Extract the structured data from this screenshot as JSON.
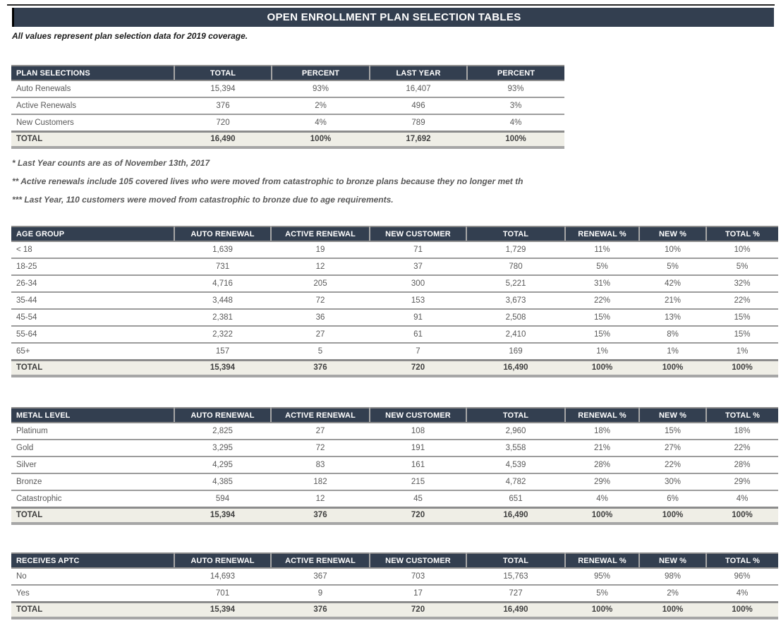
{
  "page": {
    "title": "OPEN ENROLLMENT PLAN SELECTION TABLES",
    "subtitle": "All values represent plan selection data for 2019 coverage."
  },
  "colors": {
    "header_bg": "#333F50",
    "total_row_bg": "#EFEEE6",
    "rule_gray": "#9c9c9c",
    "thick_rule": "#8c8c8c",
    "bottom_rule": "#a6a6a6",
    "data_text": "#595959",
    "total_text": "#3f3f3f"
  },
  "footnotes": [
    "* Last Year counts are as of November 13th, 2017",
    "** Active renewals include 105 covered lives who were moved from catastrophic to bronze plans because they no longer met th",
    "*** Last Year, 110 customers were moved from catastrophic to bronze due to age requirements."
  ],
  "tables": [
    {
      "name": "plan-selections",
      "columns": [
        "PLAN SELECTIONS",
        "TOTAL",
        "PERCENT",
        "LAST YEAR",
        "PERCENT"
      ],
      "rows": [
        [
          "Auto Renewals",
          "15,394",
          "93%",
          "16,407",
          "93%"
        ],
        [
          "Active Renewals",
          "376",
          "2%",
          "496",
          "3%"
        ],
        [
          "New Customers",
          "720",
          "4%",
          "789",
          "4%"
        ]
      ],
      "total_row": [
        "TOTAL",
        "16,490",
        "100%",
        "17,692",
        "100%"
      ]
    },
    {
      "name": "age-group",
      "columns": [
        "AGE GROUP",
        "AUTO RENEWAL",
        "ACTIVE RENEWAL",
        "NEW CUSTOMER",
        "TOTAL",
        "RENEWAL %",
        "NEW %",
        "TOTAL %"
      ],
      "rows": [
        [
          "< 18",
          "1,639",
          "19",
          "71",
          "1,729",
          "11%",
          "10%",
          "10%"
        ],
        [
          "18-25",
          "731",
          "12",
          "37",
          "780",
          "5%",
          "5%",
          "5%"
        ],
        [
          "26-34",
          "4,716",
          "205",
          "300",
          "5,221",
          "31%",
          "42%",
          "32%"
        ],
        [
          "35-44",
          "3,448",
          "72",
          "153",
          "3,673",
          "22%",
          "21%",
          "22%"
        ],
        [
          "45-54",
          "2,381",
          "36",
          "91",
          "2,508",
          "15%",
          "13%",
          "15%"
        ],
        [
          "55-64",
          "2,322",
          "27",
          "61",
          "2,410",
          "15%",
          "8%",
          "15%"
        ],
        [
          "65+",
          "157",
          "5",
          "7",
          "169",
          "1%",
          "1%",
          "1%"
        ]
      ],
      "total_row": [
        "TOTAL",
        "15,394",
        "376",
        "720",
        "16,490",
        "100%",
        "100%",
        "100%"
      ]
    },
    {
      "name": "metal-level",
      "columns": [
        "METAL LEVEL",
        "AUTO RENEWAL",
        "ACTIVE RENEWAL",
        "NEW CUSTOMER",
        "TOTAL",
        "RENEWAL %",
        "NEW %",
        "TOTAL %"
      ],
      "rows": [
        [
          "Platinum",
          "2,825",
          "27",
          "108",
          "2,960",
          "18%",
          "15%",
          "18%"
        ],
        [
          "Gold",
          "3,295",
          "72",
          "191",
          "3,558",
          "21%",
          "27%",
          "22%"
        ],
        [
          "Silver",
          "4,295",
          "83",
          "161",
          "4,539",
          "28%",
          "22%",
          "28%"
        ],
        [
          "Bronze",
          "4,385",
          "182",
          "215",
          "4,782",
          "29%",
          "30%",
          "29%"
        ],
        [
          "Catastrophic",
          "594",
          "12",
          "45",
          "651",
          "4%",
          "6%",
          "4%"
        ]
      ],
      "total_row": [
        "TOTAL",
        "15,394",
        "376",
        "720",
        "16,490",
        "100%",
        "100%",
        "100%"
      ]
    },
    {
      "name": "receives-aptc",
      "columns": [
        "RECEIVES APTC",
        "AUTO RENEWAL",
        "ACTIVE RENEWAL",
        "NEW CUSTOMER",
        "TOTAL",
        "RENEWAL %",
        "NEW %",
        "TOTAL %"
      ],
      "rows": [
        [
          "No",
          "14,693",
          "367",
          "703",
          "15,763",
          "95%",
          "98%",
          "96%"
        ],
        [
          "Yes",
          "701",
          "9",
          "17",
          "727",
          "5%",
          "2%",
          "4%"
        ]
      ],
      "total_row": [
        "TOTAL",
        "15,394",
        "376",
        "720",
        "16,490",
        "100%",
        "100%",
        "100%"
      ]
    }
  ]
}
